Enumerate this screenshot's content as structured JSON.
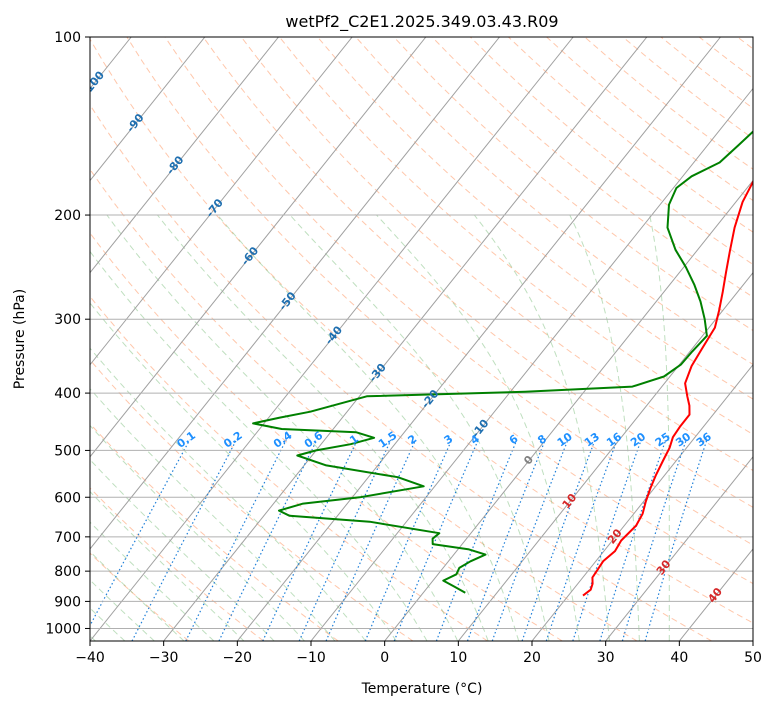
{
  "chart_data": {
    "type": "line",
    "title": "wetPf2_C2E1.2025.349.03.43.R09",
    "xlabel": "Temperature (°C)",
    "ylabel": "Pressure (hPa)",
    "xlim": [
      -40,
      50
    ],
    "ylim": [
      1050,
      100
    ],
    "x_ticks": [
      -40,
      -30,
      -20,
      -10,
      0,
      10,
      20,
      30,
      40,
      50
    ],
    "x_tick_labels": [
      "−40",
      "−30",
      "−20",
      "−10",
      "0",
      "10",
      "20",
      "30",
      "40",
      "50"
    ],
    "y_ticks": [
      100,
      200,
      300,
      400,
      500,
      600,
      700,
      800,
      900,
      1000
    ],
    "y_tick_labels": [
      "100",
      "200",
      "300",
      "400",
      "500",
      "600",
      "700",
      "800",
      "900",
      "1000"
    ],
    "isotherm_labels": [
      {
        "t": -100,
        "p": 120,
        "text": "-100"
      },
      {
        "t": -90,
        "p": 140,
        "text": "-90"
      },
      {
        "t": -80,
        "p": 165,
        "text": "-80"
      },
      {
        "t": -70,
        "p": 195,
        "text": "-70"
      },
      {
        "t": -60,
        "p": 235,
        "text": "-60"
      },
      {
        "t": -50,
        "p": 280,
        "text": "-50"
      },
      {
        "t": -40,
        "p": 320,
        "text": "-40"
      },
      {
        "t": -30,
        "p": 370,
        "text": "-30"
      },
      {
        "t": -20,
        "p": 410,
        "text": "-20"
      },
      {
        "t": -10,
        "p": 460,
        "text": "-10"
      },
      {
        "t": 0,
        "p": 520,
        "text": "0"
      },
      {
        "t": 10,
        "p": 610,
        "text": "10"
      },
      {
        "t": 20,
        "p": 700,
        "text": "20"
      },
      {
        "t": 30,
        "p": 790,
        "text": "30"
      },
      {
        "t": 40,
        "p": 880,
        "text": "40"
      }
    ],
    "mixing_ratio_labels": [
      "0.1",
      "0.2",
      "0.4",
      "0.6",
      "1",
      "1.5",
      "2",
      "3",
      "4",
      "6",
      "8",
      "10",
      "13",
      "16",
      "20",
      "25",
      "30",
      "36"
    ],
    "series": [
      {
        "name": "Temperature",
        "color": "#ff0000",
        "points": [
          [
            22.0,
            880
          ],
          [
            22.4,
            860
          ],
          [
            22.0,
            840
          ],
          [
            21.3,
            820
          ],
          [
            21.2,
            800
          ],
          [
            21.0,
            770
          ],
          [
            21.5,
            740
          ],
          [
            21.2,
            710
          ],
          [
            21.6,
            670
          ],
          [
            21.2,
            640
          ],
          [
            20.3,
            610
          ],
          [
            19.5,
            580
          ],
          [
            18.8,
            550
          ],
          [
            18.2,
            520
          ],
          [
            17.7,
            495
          ],
          [
            17.0,
            475
          ],
          [
            16.8,
            455
          ],
          [
            16.8,
            435
          ],
          [
            15.8,
            420
          ],
          [
            14.5,
            405
          ],
          [
            12.8,
            385
          ],
          [
            11.8,
            360
          ],
          [
            11.3,
            335
          ],
          [
            10.8,
            310
          ],
          [
            9.5,
            290
          ],
          [
            8.0,
            270
          ],
          [
            6.3,
            250
          ],
          [
            4.5,
            230
          ],
          [
            2.6,
            210
          ],
          [
            0.9,
            190
          ],
          [
            0.1,
            175
          ],
          [
            1.2,
            160
          ],
          [
            2.9,
            145
          ],
          [
            4.5,
            130
          ],
          [
            6.3,
            120
          ],
          [
            7.8,
            110
          ],
          [
            8.9,
            100
          ]
        ]
      },
      {
        "name": "Dewpoint",
        "color": "#008000",
        "points": [
          [
            5.7,
            870
          ],
          [
            3.6,
            850
          ],
          [
            1.4,
            830
          ],
          [
            2.5,
            810
          ],
          [
            2.2,
            790
          ],
          [
            3.0,
            770
          ],
          [
            4.3,
            750
          ],
          [
            1.5,
            735
          ],
          [
            -4.0,
            720
          ],
          [
            -4.6,
            705
          ],
          [
            -4.3,
            690
          ],
          [
            -15.0,
            660
          ],
          [
            -26.5,
            645
          ],
          [
            -28.5,
            632
          ],
          [
            -26.0,
            615
          ],
          [
            -19.0,
            600
          ],
          [
            -11.5,
            575
          ],
          [
            -16.0,
            555
          ],
          [
            -27.0,
            530
          ],
          [
            -32.0,
            510
          ],
          [
            -30.0,
            500
          ],
          [
            -26.0,
            488
          ],
          [
            -23.5,
            476
          ],
          [
            -26.5,
            466
          ],
          [
            -37.0,
            460
          ],
          [
            -41.5,
            450
          ],
          [
            -38.5,
            440
          ],
          [
            -35.0,
            430
          ],
          [
            -29.0,
            405
          ],
          [
            -8.0,
            398
          ],
          [
            6.0,
            390
          ],
          [
            9.2,
            375
          ],
          [
            10.2,
            358
          ],
          [
            10.3,
            340
          ],
          [
            10.6,
            320
          ],
          [
            8.5,
            300
          ],
          [
            6.0,
            280
          ],
          [
            3.3,
            262
          ],
          [
            0.3,
            245
          ],
          [
            -3.0,
            229
          ],
          [
            -6.5,
            210
          ],
          [
            -8.8,
            192
          ],
          [
            -9.6,
            180
          ],
          [
            -8.8,
            172
          ],
          [
            -6.5,
            163
          ],
          [
            -5.8,
            152
          ],
          [
            -5.0,
            140
          ],
          [
            -4.2,
            130
          ],
          [
            -3.0,
            120
          ],
          [
            -1.0,
            110
          ],
          [
            0.4,
            100
          ]
        ]
      }
    ]
  }
}
